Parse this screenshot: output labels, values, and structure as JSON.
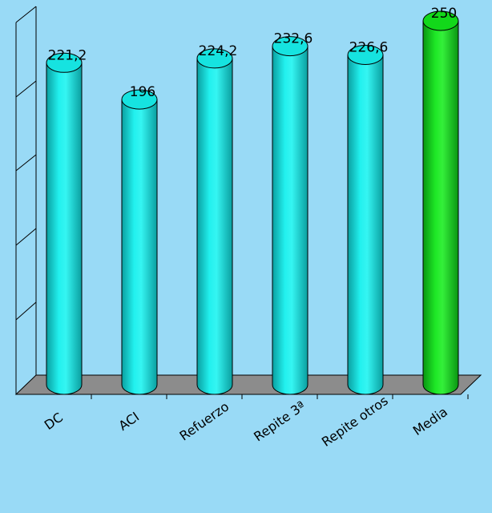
{
  "chart_data": {
    "type": "bar",
    "categories": [
      "DC",
      "ACI",
      "Refuerzo",
      "Repite 3ª",
      "Repite otros",
      "Media"
    ],
    "values": [
      221.2,
      196,
      224.2,
      232.6,
      226.6,
      250
    ],
    "data_labels": [
      "221,2",
      "196",
      "224,2",
      "232,6",
      "226,6",
      "250"
    ],
    "title": "",
    "xlabel": "",
    "ylabel": "",
    "ylim": [
      0,
      250
    ],
    "grid": false,
    "legend": "none",
    "colors": {
      "background": "#99daf6",
      "bar": "#16e3e0",
      "bar_shade": "#0aa9aa",
      "highlight_bar": "#12d81a",
      "highlight_shade": "#0a9d12",
      "floor": "#8c8c8c"
    }
  }
}
